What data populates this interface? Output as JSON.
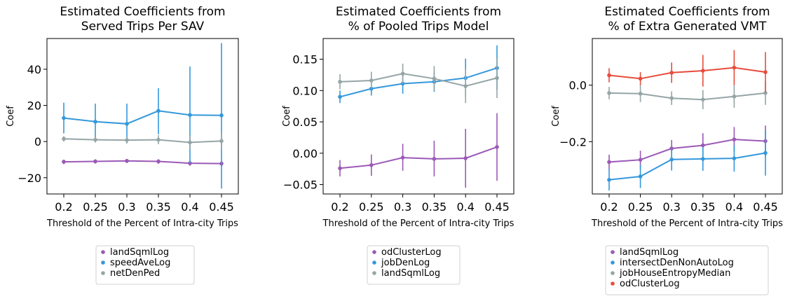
{
  "chart_data": [
    {
      "type": "line",
      "title": [
        "Estimated Coefficients from",
        "Served Trips Per SAV"
      ],
      "xlabel": "Threshold of the Percent of Intra-city Trips",
      "ylabel": "Coef",
      "x": [
        "0.2",
        "0.25",
        "0.3",
        "0.35",
        "0.4",
        "0.45"
      ],
      "ylim": [
        -29,
        57
      ],
      "yticks": [
        -20,
        0,
        20,
        40
      ],
      "ytick_labels": [
        "−20",
        "0",
        "20",
        "40"
      ],
      "grid": false,
      "legend_position": "below",
      "series": [
        {
          "name": "landSqmlLog",
          "color": "#9b59b6",
          "values": [
            -11.2,
            -11.0,
            -10.7,
            -11.0,
            -12.0,
            -12.2
          ],
          "lower": [
            -12.5,
            -12.2,
            -11.9,
            -12.3,
            -13.4,
            -13.6
          ],
          "upper": [
            -10.0,
            -9.8,
            -9.6,
            -9.8,
            -10.7,
            -10.8
          ]
        },
        {
          "name": "speedAveLog",
          "color": "#3498db",
          "values": [
            13.0,
            11.0,
            9.8,
            17.0,
            14.7,
            14.5
          ],
          "lower": [
            4.5,
            1.0,
            -1.0,
            4.0,
            -12.0,
            -26.0
          ],
          "upper": [
            21.5,
            21.0,
            21.0,
            29.5,
            41.5,
            54.5
          ]
        },
        {
          "name": "netDenPed",
          "color": "#95a5a6",
          "values": [
            1.5,
            1.0,
            0.8,
            1.0,
            -0.5,
            0.3
          ],
          "lower": [
            0.0,
            -0.6,
            -1.0,
            -1.5,
            -4.5,
            -4.5
          ],
          "upper": [
            3.0,
            2.6,
            2.6,
            3.5,
            3.5,
            5.0
          ]
        }
      ]
    },
    {
      "type": "line",
      "title": [
        "Estimated Coefficients from",
        "% of Pooled Trips Model"
      ],
      "xlabel": "Threshold of the Percent of Intra-city Trips",
      "ylabel": "Coef",
      "x": [
        "0.2",
        "0.25",
        "0.3",
        "0.35",
        "0.4",
        "0.45"
      ],
      "ylim": [
        -0.065,
        0.183
      ],
      "yticks": [
        -0.05,
        0.0,
        0.05,
        0.1,
        0.15
      ],
      "ytick_labels": [
        "−0.05",
        "0.00",
        "0.05",
        "0.10",
        "0.15"
      ],
      "grid": false,
      "legend_position": "below",
      "series": [
        {
          "name": "odClusterLog",
          "color": "#9b59b6",
          "values": [
            -0.024,
            -0.019,
            -0.007,
            -0.009,
            -0.008,
            0.01
          ],
          "lower": [
            -0.037,
            -0.036,
            -0.028,
            -0.037,
            -0.055,
            -0.044
          ],
          "upper": [
            -0.011,
            -0.002,
            0.015,
            0.02,
            0.039,
            0.064
          ]
        },
        {
          "name": "jobDenLog",
          "color": "#3498db",
          "values": [
            0.09,
            0.103,
            0.111,
            0.114,
            0.12,
            0.136
          ],
          "lower": [
            0.08,
            0.092,
            0.095,
            0.098,
            0.09,
            0.101
          ],
          "upper": [
            0.1,
            0.114,
            0.127,
            0.13,
            0.151,
            0.172
          ]
        },
        {
          "name": "landSqmlLog",
          "color": "#95a5a6",
          "values": [
            0.114,
            0.116,
            0.127,
            0.119,
            0.107,
            0.12
          ],
          "lower": [
            0.102,
            0.103,
            0.111,
            0.1,
            0.08,
            0.088
          ],
          "upper": [
            0.126,
            0.13,
            0.143,
            0.139,
            0.134,
            0.152
          ]
        }
      ]
    },
    {
      "type": "line",
      "title": [
        "Estimated Coefficients from",
        "% of Extra Generated VMT"
      ],
      "xlabel": "Threshold of the Percent of Intra-city Trips",
      "ylabel": "Coef",
      "x": [
        "0.2",
        "0.25",
        "0.3",
        "0.35",
        "0.4",
        "0.45"
      ],
      "ylim": [
        -0.385,
        0.165
      ],
      "yticks": [
        -0.2,
        0.0
      ],
      "ytick_labels": [
        "−0.2",
        "0.0"
      ],
      "grid": false,
      "legend_position": "below",
      "series": [
        {
          "name": "landSqmlLog",
          "color": "#9b59b6",
          "values": [
            -0.272,
            -0.264,
            -0.224,
            -0.213,
            -0.192,
            -0.198
          ],
          "lower": [
            -0.298,
            -0.296,
            -0.254,
            -0.256,
            -0.236,
            -0.253
          ],
          "upper": [
            -0.246,
            -0.232,
            -0.194,
            -0.17,
            -0.148,
            -0.143
          ]
        },
        {
          "name": "intersectDenNonAutoLog",
          "color": "#3498db",
          "values": [
            -0.335,
            -0.323,
            -0.263,
            -0.261,
            -0.259,
            -0.24
          ],
          "lower": [
            -0.373,
            -0.364,
            -0.302,
            -0.303,
            -0.306,
            -0.32
          ],
          "upper": [
            -0.297,
            -0.282,
            -0.224,
            -0.219,
            -0.212,
            -0.16
          ]
        },
        {
          "name": "jobHouseEntropyMedian",
          "color": "#95a5a6",
          "values": [
            -0.028,
            -0.03,
            -0.046,
            -0.051,
            -0.04,
            -0.028
          ],
          "lower": [
            -0.05,
            -0.06,
            -0.07,
            -0.085,
            -0.08,
            -0.07
          ],
          "upper": [
            -0.006,
            0.0,
            -0.022,
            -0.017,
            0.0,
            0.014
          ]
        },
        {
          "name": "odClusterLog",
          "color": "#e74c3c",
          "values": [
            0.035,
            0.023,
            0.044,
            0.051,
            0.062,
            0.046
          ],
          "lower": [
            0.01,
            0.0,
            0.008,
            -0.005,
            0.0,
            -0.025
          ],
          "upper": [
            0.06,
            0.046,
            0.08,
            0.107,
            0.124,
            0.117
          ]
        }
      ]
    }
  ]
}
